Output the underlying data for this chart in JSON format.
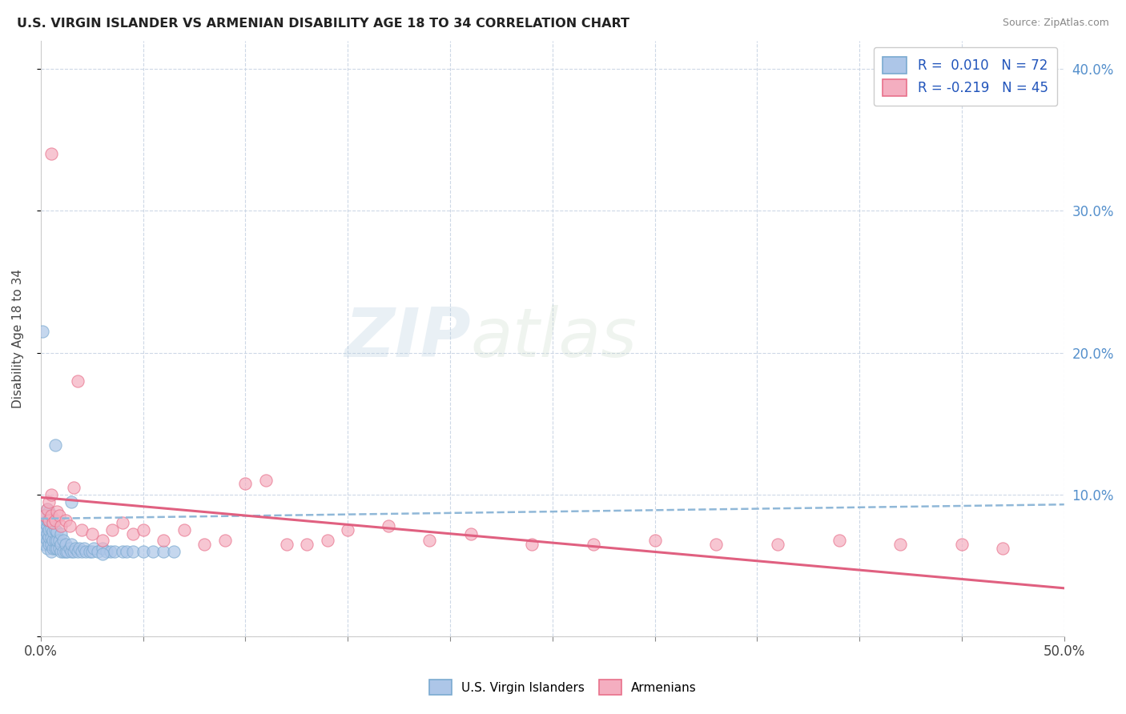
{
  "title": "U.S. VIRGIN ISLANDER VS ARMENIAN DISABILITY AGE 18 TO 34 CORRELATION CHART",
  "source": "Source: ZipAtlas.com",
  "ylabel": "Disability Age 18 to 34",
  "xlim": [
    0.0,
    0.5
  ],
  "ylim": [
    0.0,
    0.42
  ],
  "xticks": [
    0.0,
    0.05,
    0.1,
    0.15,
    0.2,
    0.25,
    0.3,
    0.35,
    0.4,
    0.45,
    0.5
  ],
  "ytick_positions": [
    0.0,
    0.1,
    0.2,
    0.3,
    0.4
  ],
  "yticklabels_right": [
    "",
    "10.0%",
    "20.0%",
    "30.0%",
    "40.0%"
  ],
  "blue_R": 0.01,
  "blue_N": 72,
  "pink_R": -0.219,
  "pink_N": 45,
  "blue_color": "#adc6e8",
  "pink_color": "#f4aec0",
  "blue_edge_color": "#7aaad0",
  "pink_edge_color": "#e8708a",
  "blue_line_color": "#90b8d8",
  "pink_line_color": "#e06080",
  "legend_label_blue": "U.S. Virgin Islanders",
  "legend_label_pink": "Armenians",
  "watermark_zip": "ZIP",
  "watermark_atlas": "atlas",
  "bg_color": "#ffffff",
  "grid_color": "#c8d4e4",
  "blue_scatter_x": [
    0.001,
    0.001,
    0.002,
    0.002,
    0.002,
    0.002,
    0.002,
    0.003,
    0.003,
    0.003,
    0.003,
    0.003,
    0.003,
    0.004,
    0.004,
    0.004,
    0.004,
    0.004,
    0.005,
    0.005,
    0.005,
    0.005,
    0.005,
    0.006,
    0.006,
    0.006,
    0.006,
    0.007,
    0.007,
    0.007,
    0.008,
    0.008,
    0.008,
    0.009,
    0.009,
    0.01,
    0.01,
    0.01,
    0.011,
    0.011,
    0.012,
    0.012,
    0.013,
    0.014,
    0.015,
    0.015,
    0.016,
    0.017,
    0.018,
    0.019,
    0.02,
    0.021,
    0.022,
    0.024,
    0.025,
    0.026,
    0.028,
    0.03,
    0.032,
    0.034,
    0.036,
    0.04,
    0.042,
    0.045,
    0.05,
    0.055,
    0.06,
    0.065,
    0.001,
    0.007,
    0.015,
    0.03
  ],
  "blue_scatter_y": [
    0.072,
    0.078,
    0.065,
    0.07,
    0.075,
    0.08,
    0.085,
    0.062,
    0.068,
    0.072,
    0.078,
    0.082,
    0.09,
    0.065,
    0.07,
    0.075,
    0.082,
    0.088,
    0.06,
    0.065,
    0.07,
    0.076,
    0.082,
    0.062,
    0.068,
    0.074,
    0.08,
    0.062,
    0.068,
    0.075,
    0.062,
    0.068,
    0.074,
    0.062,
    0.068,
    0.06,
    0.065,
    0.072,
    0.06,
    0.068,
    0.06,
    0.065,
    0.06,
    0.062,
    0.06,
    0.065,
    0.06,
    0.062,
    0.06,
    0.062,
    0.06,
    0.062,
    0.06,
    0.06,
    0.06,
    0.062,
    0.06,
    0.062,
    0.06,
    0.06,
    0.06,
    0.06,
    0.06,
    0.06,
    0.06,
    0.06,
    0.06,
    0.06,
    0.215,
    0.135,
    0.095,
    0.058
  ],
  "pink_scatter_x": [
    0.002,
    0.003,
    0.004,
    0.004,
    0.005,
    0.005,
    0.006,
    0.007,
    0.008,
    0.009,
    0.01,
    0.012,
    0.014,
    0.016,
    0.018,
    0.02,
    0.025,
    0.03,
    0.035,
    0.04,
    0.045,
    0.05,
    0.06,
    0.07,
    0.08,
    0.09,
    0.1,
    0.12,
    0.13,
    0.14,
    0.15,
    0.17,
    0.19,
    0.21,
    0.24,
    0.27,
    0.3,
    0.33,
    0.36,
    0.39,
    0.42,
    0.45,
    0.47,
    0.005,
    0.11
  ],
  "pink_scatter_y": [
    0.085,
    0.09,
    0.082,
    0.095,
    0.085,
    0.1,
    0.08,
    0.082,
    0.088,
    0.085,
    0.078,
    0.082,
    0.078,
    0.105,
    0.18,
    0.075,
    0.072,
    0.068,
    0.075,
    0.08,
    0.072,
    0.075,
    0.068,
    0.075,
    0.065,
    0.068,
    0.108,
    0.065,
    0.065,
    0.068,
    0.075,
    0.078,
    0.068,
    0.072,
    0.065,
    0.065,
    0.068,
    0.065,
    0.065,
    0.068,
    0.065,
    0.065,
    0.062,
    0.34,
    0.11
  ]
}
